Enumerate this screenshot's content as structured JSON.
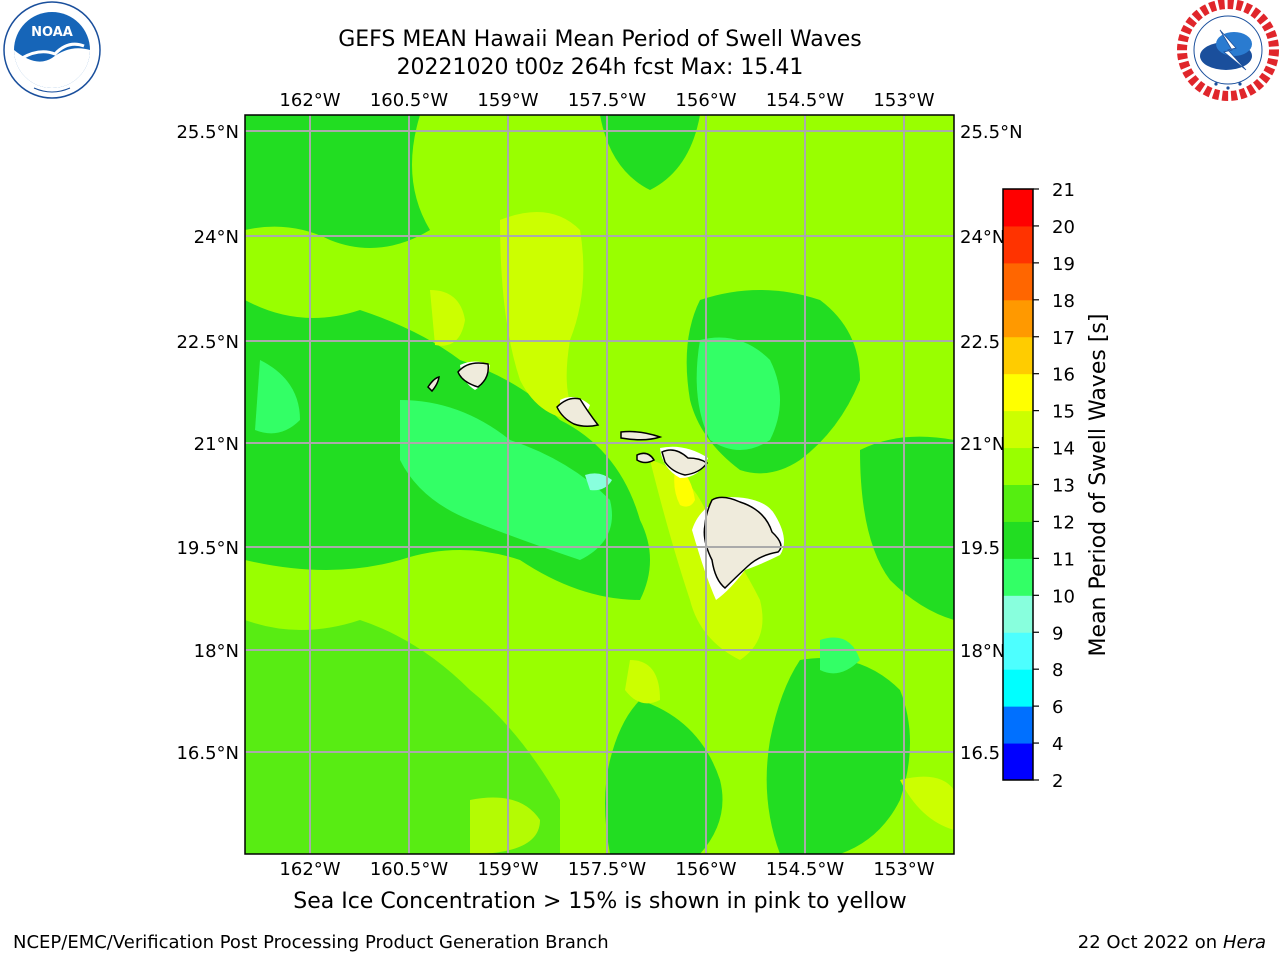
{
  "header": {
    "title_line1": "GEFS MEAN Hawaii Mean Period of Swell Waves",
    "title_line2": "20221020 t00z 264h fcst   Max: 15.41"
  },
  "map": {
    "lon_ticks": [
      "162°W",
      "160.5°W",
      "159°W",
      "157.5°W",
      "156°W",
      "154.5°W",
      "153°W"
    ],
    "lat_ticks_left": [
      "25.5°N",
      "24°N",
      "22.5°N",
      "21°N",
      "19.5°N",
      "18°N",
      "16.5°N"
    ],
    "lat_ticks_right": [
      "25.5°N",
      "24°N",
      "22.5",
      "21°N",
      "19.5",
      "18°N",
      "16.5"
    ]
  },
  "colorbar": {
    "label": "Mean Period of Swell Waves [s]",
    "ticks": [
      "2",
      "4",
      "6",
      "8",
      "9",
      "10",
      "11",
      "12",
      "13",
      "14",
      "15",
      "16",
      "17",
      "18",
      "19",
      "20",
      "21"
    ],
    "colors": [
      "#0000ff",
      "#0070ff",
      "#00ffff",
      "#4dffff",
      "#88ffdd",
      "#33ff66",
      "#22dd22",
      "#55ee11",
      "#99ff00",
      "#ccff00",
      "#ffff00",
      "#ffcc00",
      "#ff9900",
      "#ff6600",
      "#ff3300",
      "#ff0000"
    ]
  },
  "note": "Sea Ice Concentration > 15% is shown in pink to yellow",
  "footer": {
    "left": "NCEP/EMC/Verification Post Processing Product Generation Branch",
    "date": "22 Oct 2022 on ",
    "host": "Hera"
  }
}
